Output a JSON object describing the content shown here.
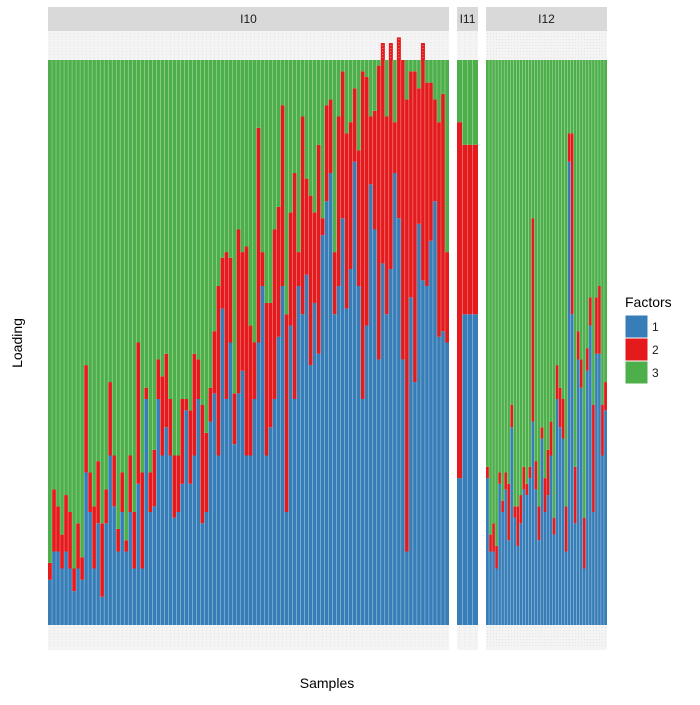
{
  "chart_data": {
    "type": "bar",
    "stacked": true,
    "xlabel": "Samples",
    "ylabel": "Loading",
    "ylim": [
      0,
      1
    ],
    "grid": false,
    "legend": {
      "title": "Factors",
      "placement": "right",
      "entries": [
        {
          "label": "1",
          "color": "#377EB8"
        },
        {
          "label": "2",
          "color": "#E41A1C"
        },
        {
          "label": "3",
          "color": "#4DAF4A"
        }
      ]
    },
    "panels": [
      {
        "name": "I10",
        "f1": [
          0.08,
          0.13,
          0.13,
          0.1,
          0.13,
          0.1,
          0.06,
          0.1,
          0.08,
          0.27,
          0.2,
          0.1,
          0.18,
          0.05,
          0.18,
          0.3,
          0.21,
          0.13,
          0.2,
          0.13,
          0.2,
          0.1,
          0.25,
          0.1,
          0.4,
          0.2,
          0.21,
          0.4,
          0.3,
          0.35,
          0.3,
          0.19,
          0.2,
          0.25,
          0.38,
          0.25,
          0.3,
          0.4,
          0.18,
          0.2,
          0.36,
          0.41,
          0.3,
          0.56,
          0.4,
          0.5,
          0.32,
          0.41,
          0.45,
          0.3,
          0.3,
          0.4,
          0.5,
          0.6,
          0.3,
          0.35,
          0.4,
          0.51,
          0.6,
          0.2,
          0.53,
          0.4,
          0.6,
          0.55,
          0.62,
          0.46,
          0.57,
          0.48,
          0.69,
          0.75,
          0.8,
          0.55,
          0.6,
          0.72,
          0.56,
          0.63,
          0.82,
          0.6,
          0.4,
          0.53,
          0.78,
          0.7,
          0.47,
          0.64,
          0.55,
          0.63,
          0.8,
          0.72,
          0.47,
          0.13,
          0.58,
          0.43,
          0.71,
          0.61,
          0.6,
          0.68,
          0.75,
          0.51,
          0.52,
          0.5
        ],
        "f2": [
          0.03,
          0.11,
          0.08,
          0.06,
          0.1,
          0.1,
          0.04,
          0.08,
          0.04,
          0.19,
          0.07,
          0.11,
          0.11,
          0.13,
          0.06,
          0.13,
          0.09,
          0.04,
          0.07,
          0.02,
          0.1,
          0.1,
          0.25,
          0.17,
          0.02,
          0.07,
          0.1,
          0.07,
          0.14,
          0.13,
          0.1,
          0.11,
          0.1,
          0.15,
          0.02,
          0.13,
          0.18,
          0.07,
          0.21,
          0.14,
          0.06,
          0.11,
          0.3,
          0.09,
          0.26,
          0.15,
          0.09,
          0.29,
          0.21,
          0.37,
          0.23,
          0.1,
          0.38,
          0.06,
          0.27,
          0.22,
          0.3,
          0.23,
          0.32,
          0.35,
          0.2,
          0.4,
          0.06,
          0.35,
          0.17,
          0.3,
          0.16,
          0.37,
          0.03,
          0.17,
          0.13,
          0.11,
          0.3,
          0.26,
          0.31,
          0.26,
          0.13,
          0.24,
          0.58,
          0.44,
          0.12,
          0.21,
          0.52,
          0.39,
          0.35,
          0.4,
          0.09,
          0.32,
          0.53,
          0.8,
          0.4,
          0.55,
          0.24,
          0.42,
          0.36,
          0.28,
          0.18,
          0.38,
          0.42,
          0.16
        ],
        "f3": null
      },
      {
        "name": "I11",
        "f1": [
          0.26,
          0.55,
          0.55,
          0.55
        ],
        "f2": [
          0.63,
          0.3,
          0.3,
          0.3
        ],
        "f3": null
      },
      {
        "name": "I12",
        "f1": [
          0.26,
          0.13,
          0.13,
          0.1,
          0.25,
          0.2,
          0.24,
          0.15,
          0.35,
          0.19,
          0.14,
          0.18,
          0.24,
          0.23,
          0.26,
          0.36,
          0.24,
          0.15,
          0.33,
          0.2,
          0.23,
          0.3,
          0.16,
          0.4,
          0.35,
          0.33,
          0.13,
          0.82,
          0.55,
          0.18,
          0.47,
          0.42,
          0.1,
          0.45,
          0.53,
          0.2,
          0.48,
          0.48,
          0.3,
          0.38
        ],
        "f2": [
          0.02,
          0.03,
          0.05,
          0.04,
          0.02,
          0.02,
          0.03,
          0.1,
          0.04,
          0.02,
          0.07,
          0.05,
          0.04,
          0.02,
          0.02,
          0.36,
          0.05,
          0.06,
          0.02,
          0.06,
          0.08,
          0.06,
          0.03,
          0.06,
          0.07,
          0.07,
          0.08,
          0.05,
          0.32,
          0.1,
          0.05,
          0.05,
          0.09,
          0.04,
          0.05,
          0.19,
          0.1,
          0.12,
          0.09,
          0.05
        ],
        "f3": null
      }
    ]
  }
}
